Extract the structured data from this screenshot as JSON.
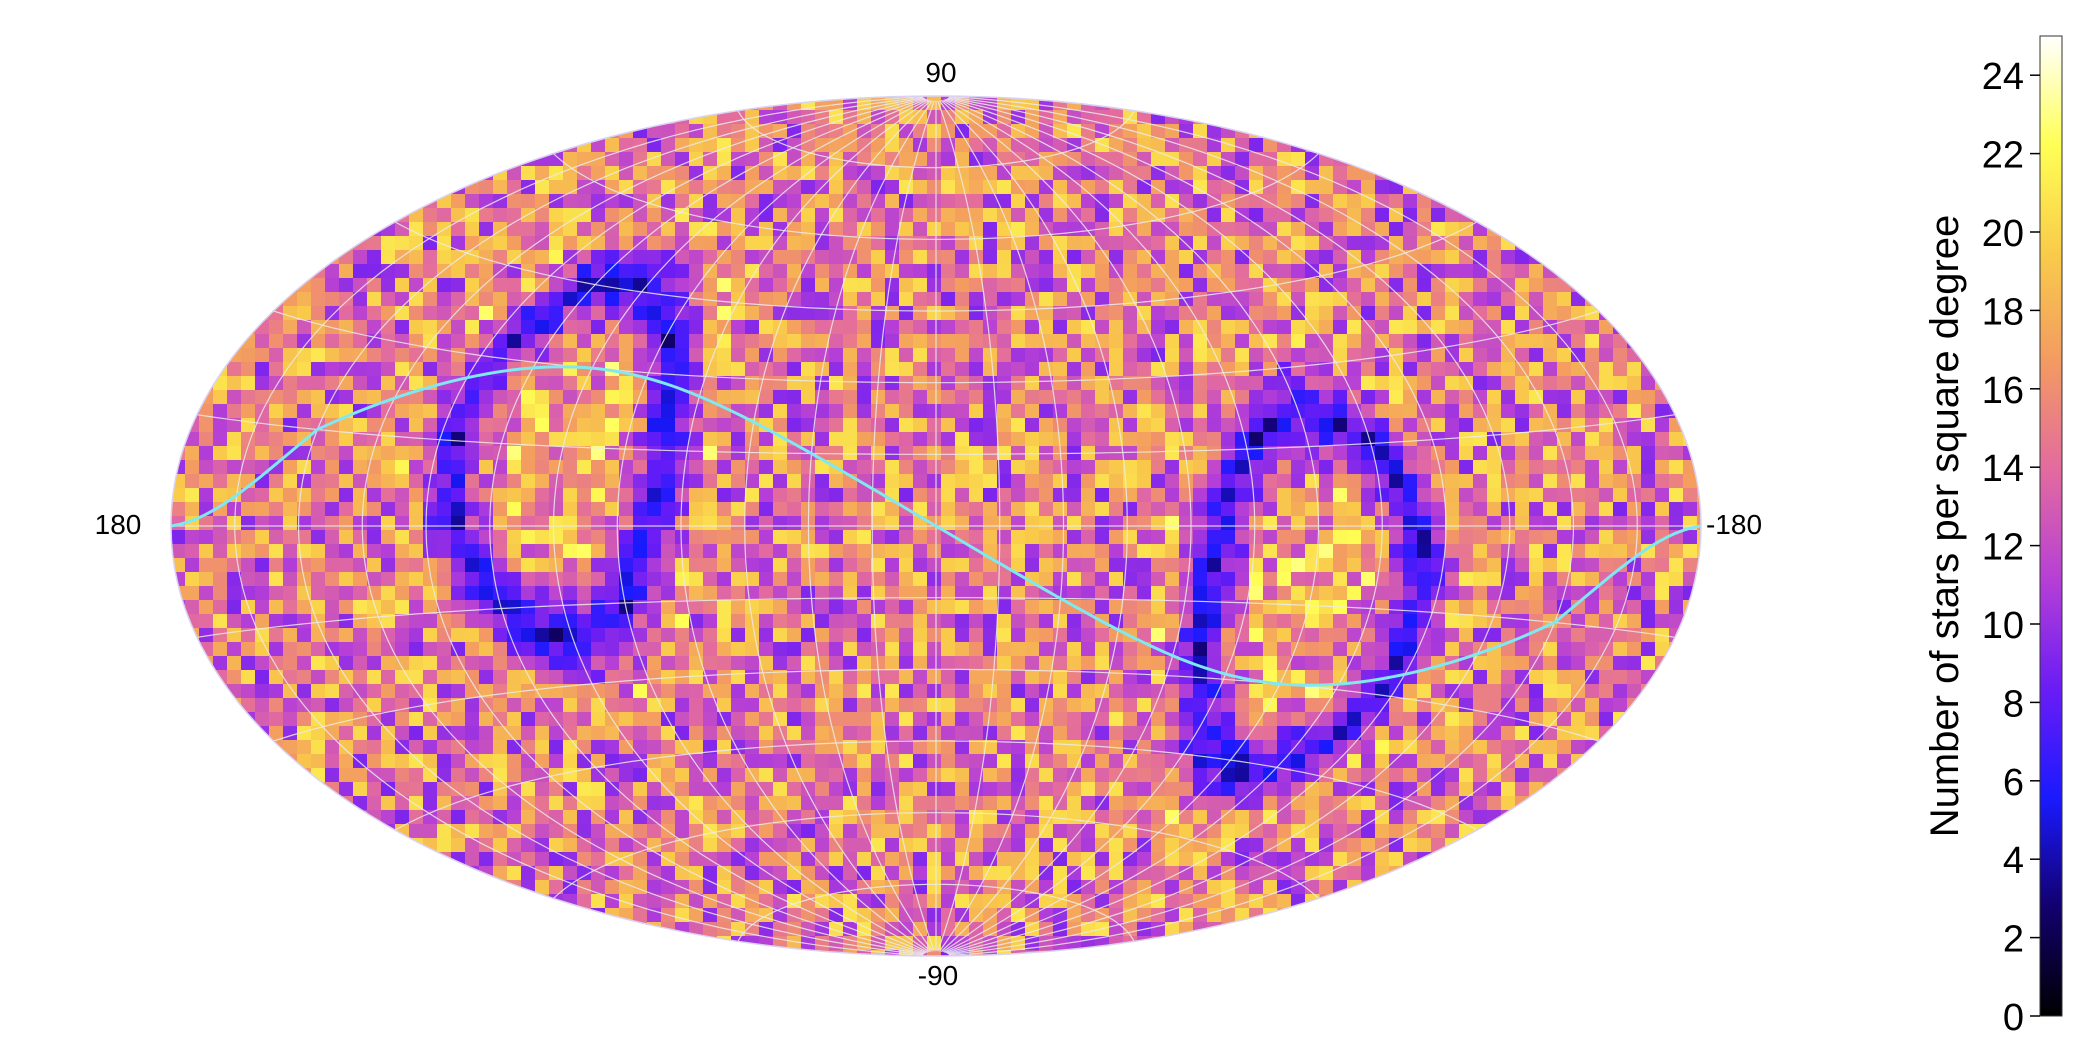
{
  "chart_data": {
    "type": "heatmap",
    "projection": "aitoff",
    "title": "",
    "colorbar": {
      "label": "Number of stars per square degree",
      "range": [
        0,
        25
      ],
      "ticks": [
        0,
        2,
        4,
        6,
        8,
        10,
        12,
        14,
        16,
        18,
        20,
        22,
        24
      ],
      "colormap": [
        "#000000",
        "#12006e",
        "#1a1aff",
        "#6a1cf5",
        "#b53fd6",
        "#e26aa0",
        "#f39a62",
        "#f9cb4a",
        "#ffff55",
        "#ffffff"
      ]
    },
    "axis_labels": {
      "lat_top": "90",
      "lat_bottom": "-90",
      "lon_left": "180",
      "lon_right": "-180"
    },
    "grid": true,
    "grid_step_deg": 15,
    "curve": {
      "name": "",
      "color": "#7fe9f2",
      "points": [
        [
          180,
          0
        ],
        [
          150,
          25
        ],
        [
          90,
          30
        ],
        [
          45,
          15
        ],
        [
          0,
          0
        ],
        [
          -45,
          -15
        ],
        [
          -90,
          -30
        ],
        [
          -150,
          -25
        ],
        [
          -180,
          0
        ]
      ]
    },
    "underdense_band": {
      "pole_lon_deg": 90,
      "pole_lat_deg": 10,
      "description_values": {
        "band_center_deg": 90,
        "band_halfwidth_deg": 10,
        "band_min_density": 2
      }
    },
    "background_density": {
      "typical": 15,
      "spread": 6
    }
  }
}
